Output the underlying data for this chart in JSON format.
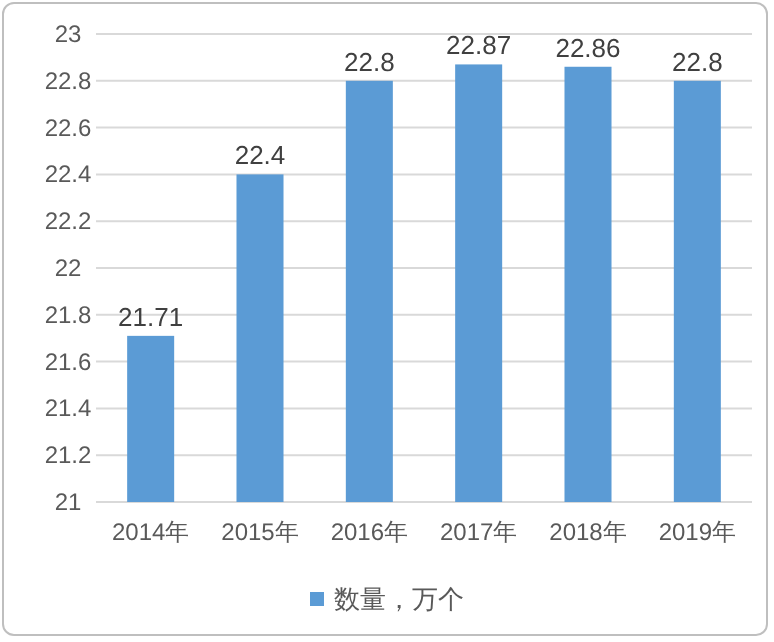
{
  "chart_data": {
    "type": "bar",
    "categories": [
      "2014年",
      "2015年",
      "2016年",
      "2017年",
      "2018年",
      "2019年"
    ],
    "series": [
      {
        "name": "数量，万个",
        "color": "#5b9bd5",
        "values": [
          21.71,
          22.4,
          22.8,
          22.87,
          22.86,
          22.8
        ]
      }
    ],
    "ylim": [
      21,
      23
    ],
    "yticks": [
      21,
      21.2,
      21.4,
      21.6,
      21.8,
      22,
      22.2,
      22.4,
      22.6,
      22.8,
      23
    ],
    "grid": "y",
    "legend": "bottom",
    "data_labels": true
  }
}
